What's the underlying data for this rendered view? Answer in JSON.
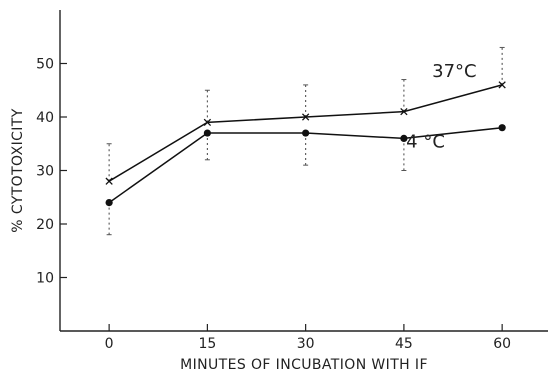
{
  "chart_data": {
    "type": "line",
    "title": "",
    "xlabel": "MINUTES OF INCUBATION WITH IF",
    "ylabel": "% CYTOTOXICITY",
    "x": [
      0,
      15,
      30,
      45,
      60
    ],
    "xticks": [
      "0",
      "15",
      "30",
      "45",
      "60"
    ],
    "yticks": [
      "10",
      "20",
      "30",
      "40",
      "50"
    ],
    "xlim": [
      -7.5,
      67
    ],
    "ylim": [
      0,
      60
    ],
    "grid": false,
    "series": [
      {
        "name": "37°C",
        "marker": "x",
        "values": [
          28,
          39,
          40,
          41,
          46
        ],
        "error_upper": [
          35,
          45,
          46,
          47,
          53
        ],
        "error_lower": [
          null,
          null,
          null,
          null,
          null
        ]
      },
      {
        "name": "4 °C",
        "marker": "filled-circle",
        "values": [
          24,
          37,
          37,
          36,
          38
        ],
        "error_upper": [
          null,
          null,
          null,
          null,
          null
        ],
        "error_lower": [
          18,
          32,
          31,
          30,
          null
        ]
      }
    ]
  }
}
